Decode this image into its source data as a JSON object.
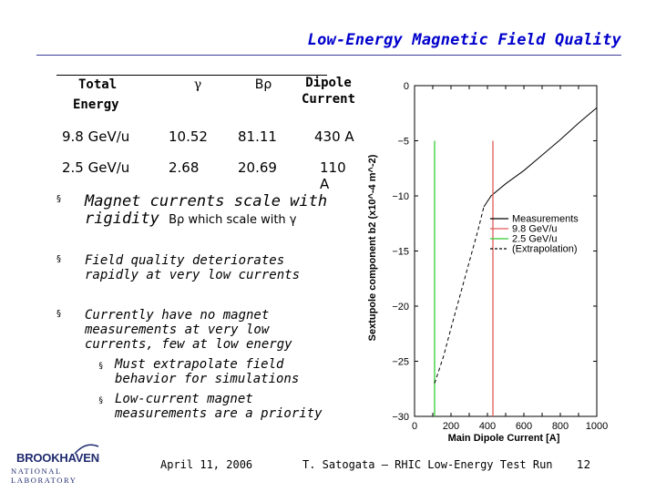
{
  "slide": {
    "title": "Low-Energy Magnetic Field Quality"
  },
  "table": {
    "headers": [
      "Total\nEnergy",
      "γ",
      "Bρ",
      "Dipole Current"
    ],
    "header_lines": {
      "total1": "Total",
      "total2": "Energy",
      "gamma": "γ",
      "brho": "Bρ",
      "dipole1": "Dipole",
      "dipole2": "Current"
    },
    "rows": [
      [
        "9.8 GeV/u",
        "10.52",
        "81.11",
        "430 A"
      ],
      [
        "2.5 GeV/u",
        "2.68",
        "20.69",
        "110 A"
      ]
    ]
  },
  "bullets": {
    "b1": "Magnet currents scale with rigidity",
    "b1_tail": "Bρ which scale with γ",
    "b2": "Field quality deteriorates rapidly at very low currents",
    "b3": "Currently have no magnet measurements at very low currents, few at low energy",
    "s1": "Must extrapolate field behavior for simulations",
    "s2": "Low-current magnet measurements are a priority",
    "marker": "§"
  },
  "footer": {
    "date": "April 11, 2006",
    "author": "T. Satogata – RHIC Low-Energy Test Run",
    "page": "12",
    "logo_name": "BROOKHAVEN",
    "logo_lab": "NATIONAL LABORATORY"
  },
  "chart_data": {
    "type": "line",
    "xlabel": "Main Dipole Current [A]",
    "ylabel": "Sextupole component b2 (x10^-4 m^-2)",
    "xlim": [
      0,
      1000
    ],
    "ylim": [
      -30,
      0
    ],
    "xticks": [
      0,
      100,
      200,
      300,
      400,
      500,
      600,
      700,
      800,
      900,
      1000
    ],
    "yticks": [
      0,
      -5,
      -10,
      -15,
      -20,
      -25,
      -30
    ],
    "legend_position": "right",
    "series": [
      {
        "name": "Measurements",
        "style": "solid",
        "color": "#000000",
        "x": [
          380,
          420,
          500,
          600,
          700,
          800,
          900,
          1000
        ],
        "y": [
          -11.0,
          -10.0,
          -8.9,
          -7.7,
          -6.3,
          -4.9,
          -3.4,
          -2.0
        ]
      },
      {
        "name": "9.8 GeV/u",
        "style": "vline",
        "color": "#e05a5a",
        "x": [
          430
        ]
      },
      {
        "name": "2.5 GeV/u",
        "style": "vline",
        "color": "#33cc33",
        "x": [
          110
        ]
      },
      {
        "name": "(Extrapolation)",
        "style": "dashed",
        "color": "#000000",
        "x": [
          110,
          160,
          200,
          250,
          300,
          350,
          380
        ],
        "y": [
          -27.0,
          -24.5,
          -22.0,
          -19.0,
          -16.0,
          -13.0,
          -11.0
        ]
      }
    ]
  }
}
